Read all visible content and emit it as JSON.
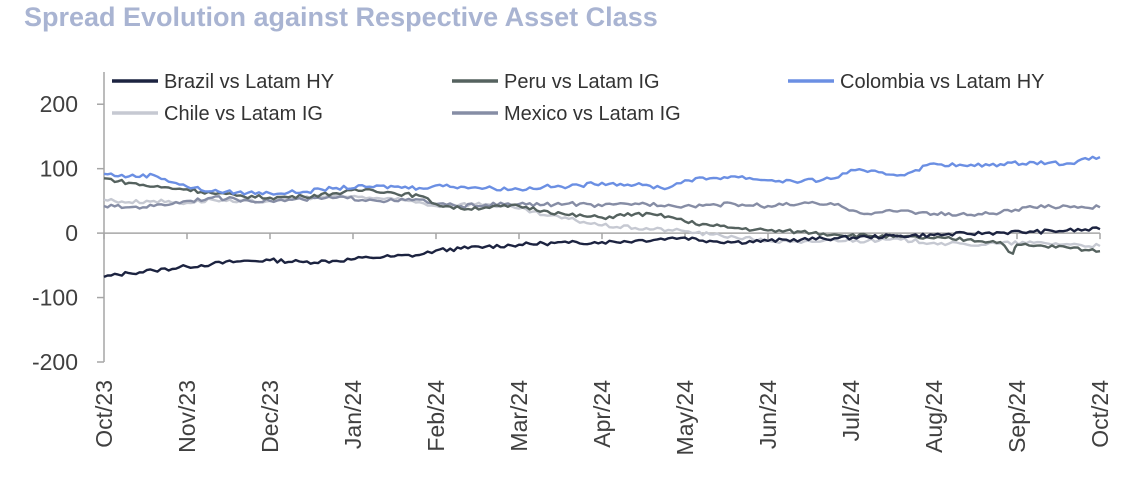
{
  "chart_data": {
    "type": "line",
    "title": "Spread Evolution against Respective Asset Class",
    "xlabel": "",
    "ylabel": "",
    "ylim": [
      -200,
      250
    ],
    "yticks": [
      200,
      100,
      0,
      -100,
      -200
    ],
    "x_tick_labels": [
      "Oct/23",
      "Nov/23",
      "Dec/23",
      "Jan/24",
      "Feb/24",
      "Mar/24",
      "Apr/24",
      "May/24",
      "Jun/24",
      "Jul/24",
      "Aug/24",
      "Sep/24",
      "Oct/24"
    ],
    "x_range": [
      0,
      12
    ],
    "series": [
      {
        "name": "Brazil vs Latam HY",
        "color": "#1c2340",
        "x": [
          0,
          0.3,
          0.6,
          1.0,
          1.3,
          1.6,
          2.0,
          2.4,
          2.8,
          3.2,
          3.5,
          3.8,
          4.0,
          4.3,
          4.6,
          5.0,
          5.3,
          5.6,
          6.0,
          6.4,
          6.8,
          7.0,
          7.3,
          7.6,
          8.0,
          8.4,
          8.8,
          9.2,
          9.6,
          10.0,
          10.4,
          10.8,
          11.2,
          11.6,
          12.0
        ],
        "values": [
          -68,
          -62,
          -58,
          -52,
          -48,
          -44,
          -42,
          -45,
          -43,
          -38,
          -36,
          -34,
          -27,
          -24,
          -21,
          -18,
          -16,
          -15,
          -14,
          -12,
          -8,
          -7,
          -12,
          -14,
          -12,
          -10,
          -8,
          -6,
          -4,
          -3,
          -1,
          1,
          2,
          4,
          6
        ]
      },
      {
        "name": "Peru vs Latam IG",
        "color": "#55625f",
        "x": [
          0,
          0.3,
          0.6,
          1.0,
          1.3,
          1.6,
          2.0,
          2.4,
          2.8,
          3.2,
          3.5,
          3.8,
          4.0,
          4.3,
          4.6,
          5.0,
          5.3,
          5.6,
          6.0,
          6.4,
          6.8,
          7.0,
          7.3,
          7.6,
          8.0,
          8.4,
          8.8,
          9.2,
          9.6,
          10.0,
          10.4,
          10.8,
          10.95,
          11.0,
          11.2,
          11.6,
          12.0
        ],
        "values": [
          85,
          78,
          72,
          68,
          62,
          58,
          55,
          57,
          62,
          68,
          62,
          58,
          45,
          38,
          40,
          42,
          35,
          28,
          24,
          30,
          26,
          18,
          12,
          8,
          4,
          2,
          -2,
          -4,
          -6,
          -8,
          -10,
          -14,
          -32,
          -18,
          -20,
          -22,
          -28
        ]
      },
      {
        "name": "Colombia vs Latam HY",
        "color": "#6b8fe3",
        "x": [
          0,
          0.3,
          0.6,
          1.0,
          1.3,
          1.6,
          2.0,
          2.4,
          2.8,
          3.2,
          3.5,
          3.8,
          4.0,
          4.3,
          4.6,
          5.0,
          5.3,
          5.6,
          6.0,
          6.4,
          6.8,
          7.0,
          7.3,
          7.6,
          8.0,
          8.4,
          8.8,
          9.0,
          9.2,
          9.6,
          10.0,
          10.4,
          10.8,
          11.2,
          11.6,
          12.0
        ],
        "values": [
          92,
          88,
          90,
          72,
          65,
          63,
          62,
          64,
          70,
          72,
          72,
          70,
          74,
          72,
          70,
          68,
          72,
          72,
          78,
          75,
          70,
          82,
          85,
          88,
          82,
          80,
          85,
          98,
          95,
          90,
          108,
          104,
          107,
          110,
          108,
          118
        ]
      },
      {
        "name": "Chile vs Latam IG",
        "color": "#c6c9d2",
        "x": [
          0,
          0.3,
          0.6,
          1.0,
          1.3,
          1.6,
          2.0,
          2.4,
          2.8,
          3.2,
          3.5,
          3.8,
          4.0,
          4.3,
          4.6,
          5.0,
          5.3,
          5.6,
          6.0,
          6.4,
          6.8,
          7.0,
          7.3,
          7.6,
          8.0,
          8.4,
          8.8,
          9.2,
          9.6,
          10.0,
          10.4,
          10.8,
          11.2,
          11.6,
          12.0
        ],
        "values": [
          52,
          48,
          50,
          47,
          52,
          48,
          50,
          55,
          58,
          55,
          52,
          48,
          42,
          45,
          45,
          38,
          28,
          22,
          12,
          8,
          5,
          3,
          -2,
          -6,
          -12,
          -15,
          -10,
          -12,
          -10,
          -15,
          -18,
          -16,
          -15,
          -17,
          -20
        ]
      },
      {
        "name": "Mexico vs Latam IG",
        "color": "#868da5",
        "x": [
          0,
          0.3,
          0.6,
          1.0,
          1.3,
          1.6,
          2.0,
          2.4,
          2.8,
          3.2,
          3.5,
          3.8,
          4.0,
          4.3,
          4.6,
          5.0,
          5.3,
          5.6,
          6.0,
          6.4,
          6.8,
          7.0,
          7.3,
          7.6,
          8.0,
          8.4,
          8.8,
          9.2,
          9.6,
          10.0,
          10.4,
          10.8,
          11.2,
          11.6,
          12.0
        ],
        "values": [
          42,
          40,
          42,
          50,
          55,
          52,
          50,
          52,
          55,
          52,
          50,
          52,
          45,
          42,
          44,
          45,
          44,
          46,
          42,
          46,
          44,
          42,
          44,
          45,
          42,
          46,
          44,
          30,
          35,
          30,
          28,
          32,
          40,
          42,
          40
        ]
      }
    ],
    "legend_position": "top"
  }
}
